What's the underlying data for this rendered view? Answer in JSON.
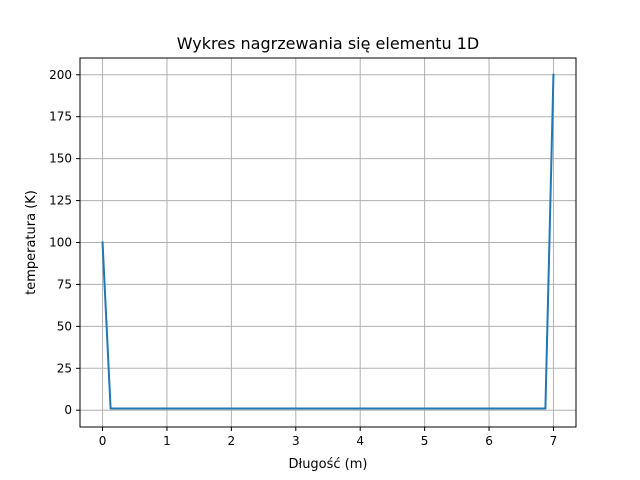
{
  "chart_data": {
    "type": "line",
    "title": "Wykres nagrzewania się elementu 1D",
    "xlabel": "Długość (m)",
    "ylabel": "temperatura (K)",
    "xlim": [
      -0.35,
      7.35
    ],
    "ylim": [
      -10,
      210
    ],
    "xticks": [
      0,
      1,
      2,
      3,
      4,
      5,
      6,
      7
    ],
    "yticks": [
      0,
      25,
      50,
      75,
      100,
      125,
      150,
      175,
      200
    ],
    "grid": true,
    "series": [
      {
        "color": "#1f77b4",
        "x": [
          0,
          0.125,
          0.25,
          0.5,
          1,
          2,
          3,
          4,
          5,
          6,
          6.5,
          6.75,
          6.875,
          7
        ],
        "y": [
          100,
          1,
          1,
          1,
          1,
          1,
          1,
          1,
          1,
          1,
          1,
          1,
          1,
          200
        ]
      }
    ]
  }
}
